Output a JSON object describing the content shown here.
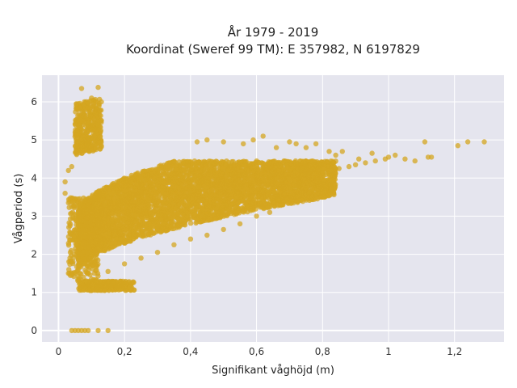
{
  "chart_data": {
    "type": "scatter",
    "title_line1": "År 1979 - 2019",
    "title_line2": "Koordinat (Sweref 99 TM): E 357982, N 6197829",
    "xlabel": "Signifikant våghöjd (m)",
    "ylabel": "Vågperiod (s)",
    "xlim": [
      -0.05,
      1.35
    ],
    "ylim": [
      -0.3,
      6.7
    ],
    "x_ticks": [
      0,
      0.2,
      0.4,
      0.6,
      0.8,
      1.0,
      1.2
    ],
    "x_tick_labels": [
      "0",
      "0,2",
      "0,4",
      "0,6",
      "0,8",
      "1",
      "1,2"
    ],
    "y_ticks": [
      0,
      1,
      2,
      3,
      4,
      5,
      6
    ],
    "y_tick_labels": [
      "0",
      "1",
      "2",
      "3",
      "4",
      "5",
      "6"
    ],
    "grid": true,
    "marker_color": "#d4a520",
    "plot_background": "#e5e5ee",
    "series": [
      {
        "points": [
          [
            0.04,
            0
          ],
          [
            0.05,
            0
          ],
          [
            0.06,
            0
          ],
          [
            0.07,
            0
          ],
          [
            0.08,
            0
          ],
          [
            0.09,
            0
          ],
          [
            0.12,
            0
          ],
          [
            0.15,
            0
          ],
          [
            0.07,
            6.35
          ],
          [
            0.12,
            6.38
          ],
          [
            0.1,
            6.1
          ],
          [
            0.13,
            6.0
          ],
          [
            1.29,
            4.95
          ],
          [
            1.21,
            4.85
          ],
          [
            1.24,
            4.95
          ],
          [
            1.11,
            4.95
          ],
          [
            1.12,
            4.55
          ],
          [
            1.13,
            4.55
          ],
          [
            1.05,
            4.5
          ],
          [
            1.08,
            4.45
          ],
          [
            1.02,
            4.6
          ],
          [
            1.0,
            4.55
          ],
          [
            0.99,
            4.5
          ],
          [
            0.96,
            4.45
          ],
          [
            0.93,
            4.4
          ],
          [
            0.9,
            4.35
          ],
          [
            0.88,
            4.3
          ],
          [
            0.85,
            4.25
          ],
          [
            0.83,
            4.2
          ],
          [
            0.8,
            4.15
          ],
          [
            0.86,
            4.7
          ],
          [
            0.84,
            4.6
          ],
          [
            0.91,
            4.5
          ],
          [
            0.95,
            4.65
          ],
          [
            0.05,
            1.5
          ],
          [
            0.04,
            1.45
          ],
          [
            0.03,
            1.5
          ],
          [
            0.06,
            1.6
          ],
          [
            0.02,
            3.9
          ],
          [
            0.03,
            4.2
          ],
          [
            0.04,
            4.3
          ],
          [
            0.02,
            3.6
          ],
          [
            0.05,
            3.05
          ],
          [
            0.03,
            3.35
          ],
          [
            0.62,
            5.1
          ],
          [
            0.59,
            5.0
          ],
          [
            0.5,
            4.95
          ],
          [
            0.42,
            4.95
          ],
          [
            0.45,
            5.0
          ],
          [
            0.56,
            4.9
          ],
          [
            0.7,
            4.95
          ],
          [
            0.72,
            4.9
          ],
          [
            0.75,
            4.8
          ],
          [
            0.78,
            4.9
          ],
          [
            0.66,
            4.8
          ],
          [
            0.82,
            4.7
          ],
          [
            0.22,
            1.2
          ],
          [
            0.2,
            1.15
          ],
          [
            0.18,
            1.2
          ],
          [
            0.14,
            1.05
          ],
          [
            0.1,
            1.05
          ],
          [
            0.08,
            1.1
          ],
          [
            0.81,
            3.75
          ],
          [
            0.72,
            3.5
          ],
          [
            0.76,
            3.6
          ],
          [
            0.68,
            3.3
          ],
          [
            0.64,
            3.1
          ],
          [
            0.6,
            3.0
          ],
          [
            0.55,
            2.8
          ],
          [
            0.5,
            2.65
          ],
          [
            0.45,
            2.5
          ],
          [
            0.4,
            2.4
          ],
          [
            0.35,
            2.25
          ],
          [
            0.3,
            2.05
          ],
          [
            0.25,
            1.9
          ],
          [
            0.2,
            1.75
          ],
          [
            0.15,
            1.55
          ],
          [
            0.1,
            1.35
          ],
          [
            0.07,
            1.25
          ]
        ]
      }
    ]
  }
}
